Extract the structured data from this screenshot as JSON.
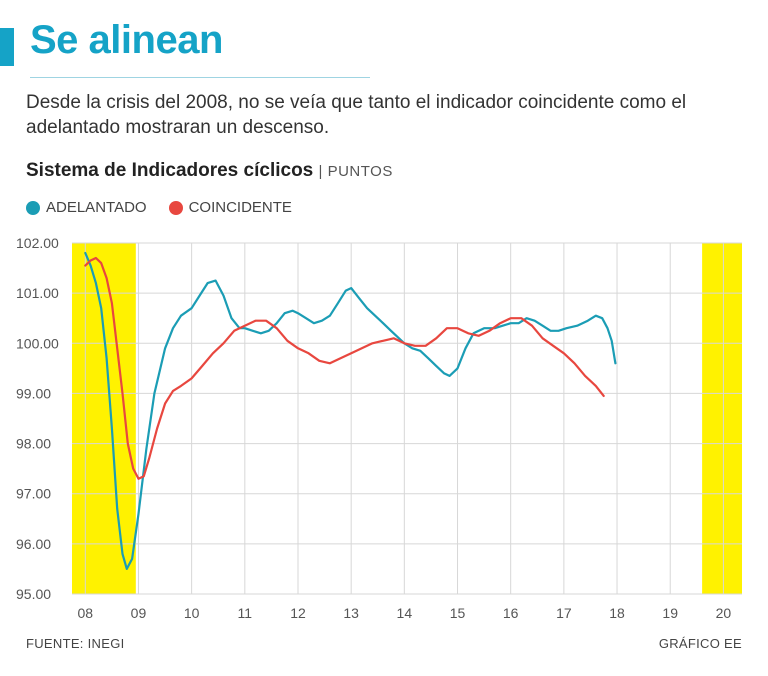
{
  "header": {
    "title": "Se alinean",
    "subtitle": "Desde la crisis del 2008, no se veía que tanto el indicador coincidente como el adelantado mostraran un descenso."
  },
  "chart_heading": {
    "title": "Sistema de Indicadores cíclicos",
    "unit": "| PUNTOS"
  },
  "colors": {
    "accent": "#15a3c7",
    "adelantado": "#1b9db5",
    "coincidente": "#e8473f",
    "highlight": "#fff200"
  },
  "footer": {
    "source": "FUENTE: INEGI",
    "credit": "GRÁFICO EE"
  },
  "chart_data": {
    "type": "line",
    "ylim": [
      95.0,
      102.0
    ],
    "y_ticks": [
      "102.00",
      "101.00",
      "100.00",
      "99.00",
      "98.00",
      "97.00",
      "96.00",
      "95.00"
    ],
    "y_tick_values": [
      102,
      101,
      100,
      99,
      98,
      97,
      96,
      95
    ],
    "x_ticks": [
      "08",
      "09",
      "10",
      "11",
      "12",
      "13",
      "14",
      "15",
      "16",
      "17",
      "18",
      "19",
      "20"
    ],
    "x_tick_values": [
      2008,
      2009,
      2010,
      2011,
      2012,
      2013,
      2014,
      2015,
      2016,
      2017,
      2018,
      2019,
      2020
    ],
    "xlim": [
      2007.75,
      2020.35
    ],
    "shaded_periods": [
      [
        2007.75,
        2008.95
      ],
      [
        2019.6,
        2020.35
      ]
    ],
    "grid": true,
    "legend": "top-left",
    "series": [
      {
        "name": "ADELANTADO",
        "points": [
          [
            2008.0,
            101.8
          ],
          [
            2008.1,
            101.55
          ],
          [
            2008.2,
            101.2
          ],
          [
            2008.3,
            100.7
          ],
          [
            2008.4,
            99.7
          ],
          [
            2008.5,
            98.3
          ],
          [
            2008.6,
            96.7
          ],
          [
            2008.7,
            95.8
          ],
          [
            2008.78,
            95.5
          ],
          [
            2008.88,
            95.7
          ],
          [
            2009.0,
            96.6
          ],
          [
            2009.15,
            97.9
          ],
          [
            2009.3,
            99.0
          ],
          [
            2009.5,
            99.9
          ],
          [
            2009.65,
            100.3
          ],
          [
            2009.8,
            100.55
          ],
          [
            2010.0,
            100.7
          ],
          [
            2010.15,
            100.95
          ],
          [
            2010.3,
            101.2
          ],
          [
            2010.45,
            101.25
          ],
          [
            2010.6,
            100.95
          ],
          [
            2010.75,
            100.5
          ],
          [
            2010.9,
            100.3
          ],
          [
            2011.0,
            100.3
          ],
          [
            2011.15,
            100.25
          ],
          [
            2011.3,
            100.2
          ],
          [
            2011.45,
            100.25
          ],
          [
            2011.6,
            100.4
          ],
          [
            2011.75,
            100.6
          ],
          [
            2011.9,
            100.65
          ],
          [
            2012.0,
            100.6
          ],
          [
            2012.15,
            100.5
          ],
          [
            2012.3,
            100.4
          ],
          [
            2012.45,
            100.45
          ],
          [
            2012.6,
            100.55
          ],
          [
            2012.75,
            100.8
          ],
          [
            2012.9,
            101.05
          ],
          [
            2013.0,
            101.1
          ],
          [
            2013.15,
            100.9
          ],
          [
            2013.3,
            100.7
          ],
          [
            2013.45,
            100.55
          ],
          [
            2013.6,
            100.4
          ],
          [
            2013.75,
            100.25
          ],
          [
            2013.9,
            100.1
          ],
          [
            2014.0,
            100.0
          ],
          [
            2014.15,
            99.9
          ],
          [
            2014.3,
            99.85
          ],
          [
            2014.45,
            99.7
          ],
          [
            2014.6,
            99.55
          ],
          [
            2014.75,
            99.4
          ],
          [
            2014.85,
            99.35
          ],
          [
            2015.0,
            99.5
          ],
          [
            2015.15,
            99.9
          ],
          [
            2015.3,
            100.2
          ],
          [
            2015.5,
            100.3
          ],
          [
            2015.7,
            100.3
          ],
          [
            2015.85,
            100.35
          ],
          [
            2016.0,
            100.4
          ],
          [
            2016.15,
            100.4
          ],
          [
            2016.3,
            100.5
          ],
          [
            2016.45,
            100.45
          ],
          [
            2016.6,
            100.35
          ],
          [
            2016.75,
            100.25
          ],
          [
            2016.9,
            100.25
          ],
          [
            2017.05,
            100.3
          ],
          [
            2017.25,
            100.35
          ],
          [
            2017.45,
            100.45
          ],
          [
            2017.6,
            100.55
          ],
          [
            2017.72,
            100.5
          ],
          [
            2017.82,
            100.3
          ],
          [
            2017.9,
            100.05
          ],
          [
            2017.97,
            99.6
          ]
        ]
      },
      {
        "name": "COINCIDENTE",
        "points": [
          [
            2008.0,
            101.55
          ],
          [
            2008.1,
            101.65
          ],
          [
            2008.2,
            101.7
          ],
          [
            2008.3,
            101.6
          ],
          [
            2008.4,
            101.3
          ],
          [
            2008.5,
            100.8
          ],
          [
            2008.6,
            99.9
          ],
          [
            2008.7,
            99.0
          ],
          [
            2008.8,
            98.0
          ],
          [
            2008.9,
            97.5
          ],
          [
            2009.0,
            97.3
          ],
          [
            2009.1,
            97.35
          ],
          [
            2009.2,
            97.7
          ],
          [
            2009.35,
            98.3
          ],
          [
            2009.5,
            98.8
          ],
          [
            2009.65,
            99.05
          ],
          [
            2009.8,
            99.15
          ],
          [
            2010.0,
            99.3
          ],
          [
            2010.2,
            99.55
          ],
          [
            2010.4,
            99.8
          ],
          [
            2010.6,
            100.0
          ],
          [
            2010.8,
            100.25
          ],
          [
            2011.0,
            100.35
          ],
          [
            2011.2,
            100.45
          ],
          [
            2011.4,
            100.45
          ],
          [
            2011.6,
            100.3
          ],
          [
            2011.8,
            100.05
          ],
          [
            2012.0,
            99.9
          ],
          [
            2012.2,
            99.8
          ],
          [
            2012.4,
            99.65
          ],
          [
            2012.6,
            99.6
          ],
          [
            2012.8,
            99.7
          ],
          [
            2013.0,
            99.8
          ],
          [
            2013.2,
            99.9
          ],
          [
            2013.4,
            100.0
          ],
          [
            2013.6,
            100.05
          ],
          [
            2013.8,
            100.1
          ],
          [
            2014.0,
            100.0
          ],
          [
            2014.2,
            99.95
          ],
          [
            2014.4,
            99.95
          ],
          [
            2014.6,
            100.1
          ],
          [
            2014.8,
            100.3
          ],
          [
            2015.0,
            100.3
          ],
          [
            2015.2,
            100.2
          ],
          [
            2015.4,
            100.15
          ],
          [
            2015.6,
            100.25
          ],
          [
            2015.8,
            100.4
          ],
          [
            2016.0,
            100.5
          ],
          [
            2016.2,
            100.5
          ],
          [
            2016.4,
            100.35
          ],
          [
            2016.6,
            100.1
          ],
          [
            2016.8,
            99.95
          ],
          [
            2017.0,
            99.8
          ],
          [
            2017.2,
            99.6
          ],
          [
            2017.4,
            99.35
          ],
          [
            2017.6,
            99.15
          ],
          [
            2017.75,
            98.95
          ]
        ]
      }
    ]
  }
}
